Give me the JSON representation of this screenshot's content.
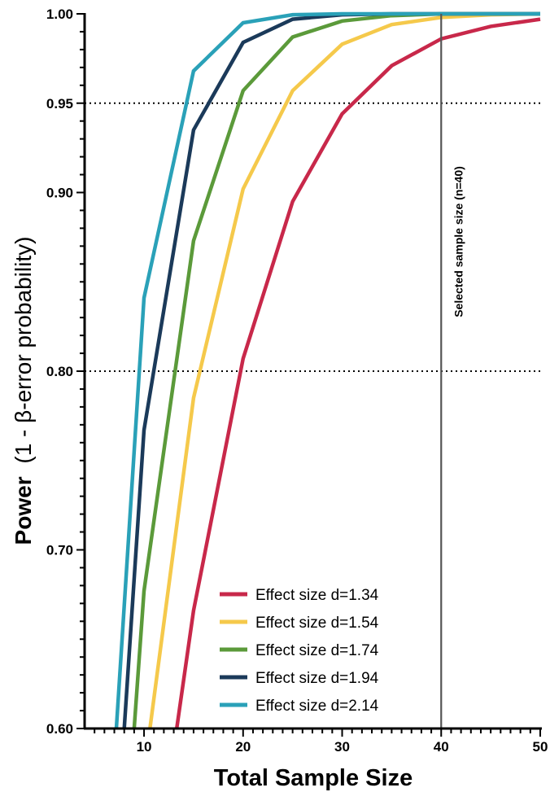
{
  "chart_data": {
    "type": "line",
    "xlabel": "Total Sample Size",
    "ylabel_bold": "Power",
    "ylabel_rest": "(1 - β-error probability)",
    "xlim": [
      4,
      50
    ],
    "ylim": [
      0.6,
      1.0
    ],
    "x_ticks": [
      10,
      20,
      30,
      40,
      50
    ],
    "x_tick_labels": [
      "10",
      "20",
      "30",
      "40",
      "50"
    ],
    "x_minor_step": 1,
    "y_ticks": [
      0.6,
      0.7,
      0.8,
      0.9,
      0.95,
      1.0
    ],
    "y_tick_labels": [
      "0.60",
      "0.70",
      "0.80",
      "0.90",
      "0.95",
      "1.00"
    ],
    "y_minor_step": 0.01,
    "reference_lines_y": [
      0.8,
      0.95
    ],
    "vline": {
      "x": 40,
      "label": "Selected sample size (n=40)"
    },
    "legend_position": "bottom-center",
    "series": [
      {
        "name": "Effect size d=1.34",
        "color": "#c8284a",
        "points": [
          [
            13.3,
            0.6
          ],
          [
            15,
            0.666
          ],
          [
            20,
            0.807
          ],
          [
            25,
            0.895
          ],
          [
            30,
            0.944
          ],
          [
            35,
            0.971
          ],
          [
            40,
            0.986
          ],
          [
            45,
            0.993
          ],
          [
            50,
            0.997
          ]
        ]
      },
      {
        "name": "Effect size d=1.54",
        "color": "#f5c94b",
        "points": [
          [
            10.6,
            0.6
          ],
          [
            15,
            0.785
          ],
          [
            20,
            0.902
          ],
          [
            25,
            0.957
          ],
          [
            30,
            0.983
          ],
          [
            35,
            0.994
          ],
          [
            40,
            0.998
          ],
          [
            45,
            0.9995
          ],
          [
            50,
            1.0
          ]
        ]
      },
      {
        "name": "Effect size d=1.74",
        "color": "#5b9a3a",
        "points": [
          [
            9.0,
            0.6
          ],
          [
            10,
            0.677
          ],
          [
            15,
            0.873
          ],
          [
            20,
            0.957
          ],
          [
            25,
            0.987
          ],
          [
            30,
            0.996
          ],
          [
            35,
            0.999
          ],
          [
            40,
            1.0
          ],
          [
            45,
            1.0
          ],
          [
            50,
            1.0
          ]
        ]
      },
      {
        "name": "Effect size d=1.94",
        "color": "#1b3a5a",
        "points": [
          [
            8.0,
            0.6
          ],
          [
            10,
            0.767
          ],
          [
            15,
            0.935
          ],
          [
            20,
            0.984
          ],
          [
            25,
            0.997
          ],
          [
            30,
            0.9995
          ],
          [
            35,
            1.0
          ],
          [
            40,
            1.0
          ],
          [
            45,
            1.0
          ],
          [
            50,
            1.0
          ]
        ]
      },
      {
        "name": "Effect size d=2.14",
        "color": "#2aa1b8",
        "points": [
          [
            7.2,
            0.6
          ],
          [
            10,
            0.841
          ],
          [
            15,
            0.968
          ],
          [
            20,
            0.995
          ],
          [
            25,
            0.9995
          ],
          [
            30,
            1.0
          ],
          [
            35,
            1.0
          ],
          [
            40,
            1.0
          ],
          [
            45,
            1.0
          ],
          [
            50,
            1.0
          ]
        ]
      }
    ]
  }
}
